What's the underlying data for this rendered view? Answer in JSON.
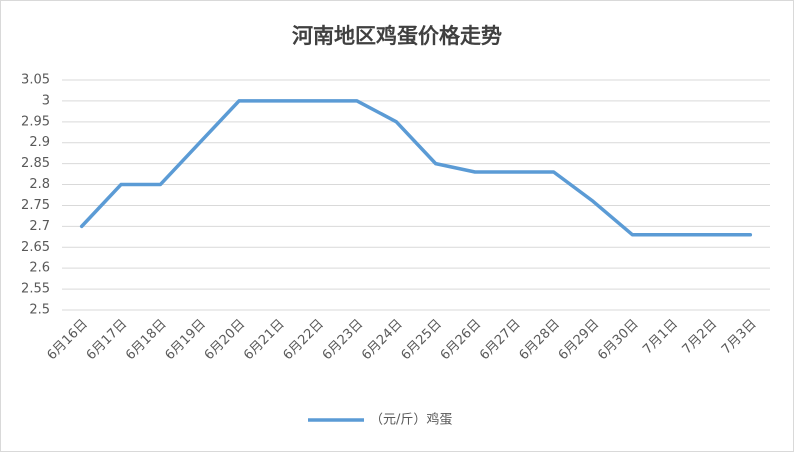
{
  "chart_data": {
    "type": "line",
    "title": "河南地区鸡蛋价格走势",
    "categories": [
      "6月16日",
      "6月17日",
      "6月18日",
      "6月19日",
      "6月20日",
      "6月21日",
      "6月22日",
      "6月23日",
      "6月24日",
      "6月25日",
      "6月26日",
      "6月27日",
      "6月28日",
      "6月29日",
      "6月30日",
      "7月1日",
      "7月2日",
      "7月3日"
    ],
    "series": [
      {
        "name": "（元/斤）鸡蛋",
        "color": "#5b9bd5",
        "values": [
          2.7,
          2.8,
          2.8,
          2.9,
          3,
          3,
          3,
          3,
          2.95,
          2.85,
          2.83,
          2.83,
          2.83,
          2.76,
          2.68,
          2.68,
          2.68,
          2.68
        ]
      }
    ],
    "ylim": [
      2.5,
      3.05
    ],
    "yticks": [
      2.5,
      2.55,
      2.6,
      2.65,
      2.7,
      2.75,
      2.8,
      2.85,
      2.9,
      2.95,
      3,
      3.05
    ],
    "grid": true,
    "legend": "bottom"
  }
}
